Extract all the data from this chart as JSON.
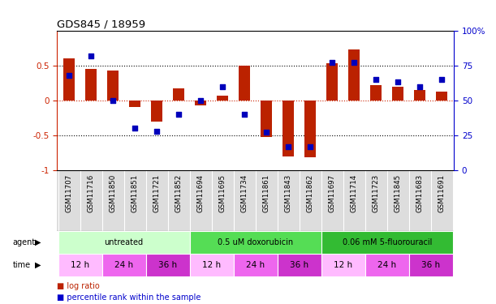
{
  "title": "GDS845 / 18959",
  "samples": [
    "GSM11707",
    "GSM11716",
    "GSM11850",
    "GSM11851",
    "GSM11721",
    "GSM11852",
    "GSM11694",
    "GSM11695",
    "GSM11734",
    "GSM11861",
    "GSM11843",
    "GSM11862",
    "GSM11697",
    "GSM11714",
    "GSM11723",
    "GSM11845",
    "GSM11683",
    "GSM11691"
  ],
  "log_ratio": [
    0.6,
    0.45,
    0.43,
    -0.1,
    -0.3,
    0.17,
    -0.07,
    0.07,
    0.5,
    -0.53,
    -0.8,
    -0.82,
    0.53,
    0.73,
    0.22,
    0.2,
    0.15,
    0.13
  ],
  "pct_rank": [
    68,
    82,
    50,
    30,
    28,
    40,
    50,
    60,
    40,
    27,
    17,
    17,
    77,
    77,
    65,
    63,
    60,
    65
  ],
  "bar_color": "#bb2200",
  "dot_color": "#0000bb",
  "hline_color": "#cc2200",
  "agents": [
    {
      "label": "untreated",
      "start": 0,
      "end": 6,
      "color": "#ccffcc"
    },
    {
      "label": "0.5 uM doxorubicin",
      "start": 6,
      "end": 12,
      "color": "#55dd55"
    },
    {
      "label": "0.06 mM 5-fluorouracil",
      "start": 12,
      "end": 18,
      "color": "#33bb33"
    }
  ],
  "times": [
    {
      "label": "12 h",
      "start": 0,
      "end": 2,
      "color": "#ffbbff"
    },
    {
      "label": "24 h",
      "start": 2,
      "end": 4,
      "color": "#ee66ee"
    },
    {
      "label": "36 h",
      "start": 4,
      "end": 6,
      "color": "#cc33cc"
    },
    {
      "label": "12 h",
      "start": 6,
      "end": 8,
      "color": "#ffbbff"
    },
    {
      "label": "24 h",
      "start": 8,
      "end": 10,
      "color": "#ee66ee"
    },
    {
      "label": "36 h",
      "start": 10,
      "end": 12,
      "color": "#cc33cc"
    },
    {
      "label": "12 h",
      "start": 12,
      "end": 14,
      "color": "#ffbbff"
    },
    {
      "label": "24 h",
      "start": 14,
      "end": 16,
      "color": "#ee66ee"
    },
    {
      "label": "36 h",
      "start": 16,
      "end": 18,
      "color": "#cc33cc"
    }
  ],
  "ylim": [
    -1,
    1
  ],
  "yticks_left": [
    -1,
    -0.5,
    0,
    0.5
  ],
  "yticks_right": [
    0,
    25,
    50,
    75,
    100
  ],
  "left_color": "#cc2200",
  "right_color": "#0000cc",
  "bg": "#ffffff",
  "label_bg": "#dddddd"
}
